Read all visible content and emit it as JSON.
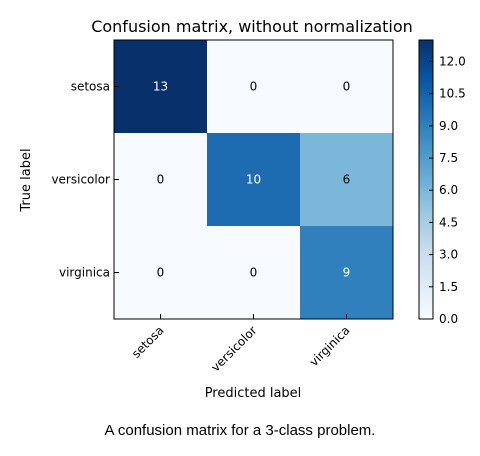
{
  "chart_data": {
    "type": "heatmap",
    "title": "Confusion matrix, without normalization",
    "xlabel": "Predicted label",
    "ylabel": "True label",
    "x_categories": [
      "setosa",
      "versicolor",
      "virginica"
    ],
    "y_categories": [
      "setosa",
      "versicolor",
      "virginica"
    ],
    "values": [
      [
        13,
        0,
        0
      ],
      [
        0,
        10,
        6
      ],
      [
        0,
        0,
        9
      ]
    ],
    "colorbar": {
      "ticks": [
        "0.0",
        "1.5",
        "3.0",
        "4.5",
        "6.0",
        "7.5",
        "9.0",
        "10.5",
        "12.0"
      ],
      "range": [
        0,
        13
      ],
      "colormap": "Blues"
    },
    "colors": {
      "low": "#f7fbff",
      "high": "#08306b"
    }
  },
  "caption": "A confusion matrix for a 3-class problem."
}
